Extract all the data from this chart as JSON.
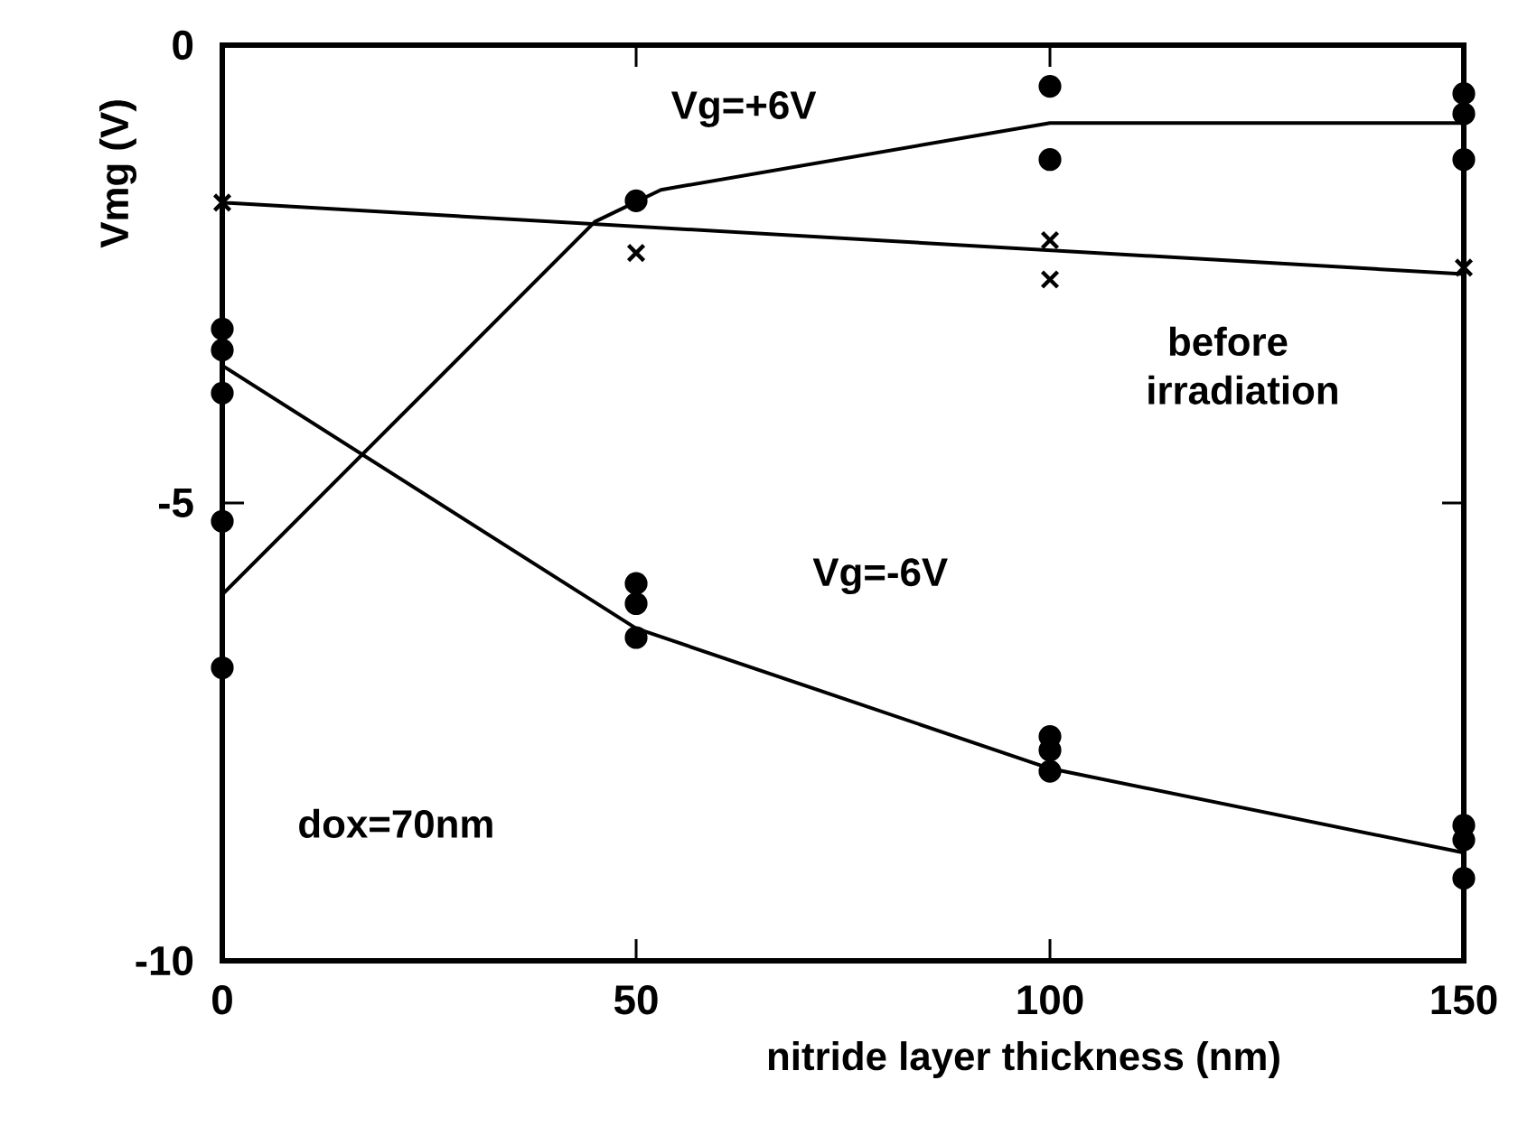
{
  "chart_data": {
    "type": "scatter",
    "xlabel": "nitride layer thickness (nm)",
    "ylabel": "Vmg (V)",
    "xlim": [
      0,
      150
    ],
    "ylim": [
      -10,
      0
    ],
    "xticks": [
      0,
      50,
      100,
      150
    ],
    "yticks": [
      0,
      -5,
      -10
    ],
    "grid": false,
    "series": [
      {
        "marker": "circle",
        "color": "#000000",
        "x": [
          0,
          0,
          50,
          100,
          100,
          150,
          150,
          150
        ],
        "values": [
          -5.2,
          -6.8,
          -1.7,
          -0.45,
          -1.25,
          -0.53,
          -0.75,
          -1.25
        ]
      },
      {
        "marker": "cross",
        "color": "#000000",
        "x": [
          0,
          50,
          100,
          100,
          150
        ],
        "values": [
          -1.72,
          -2.27,
          -2.13,
          -2.56,
          -2.43
        ]
      },
      {
        "marker": "circle",
        "color": "#000000",
        "x": [
          0,
          0,
          0,
          50,
          50,
          50,
          100,
          100,
          100,
          150,
          150,
          150
        ],
        "values": [
          -3.1,
          -3.33,
          -3.8,
          -5.88,
          -6.1,
          -6.47,
          -7.55,
          -7.7,
          -7.93,
          -8.52,
          -8.68,
          -9.1
        ]
      },
      {
        "type": "line",
        "marker": "none",
        "line_style": "solid",
        "color": "#000000",
        "x": [
          0,
          45,
          53,
          100,
          150
        ],
        "values": [
          -6.0,
          -1.93,
          -1.58,
          -0.85,
          -0.85
        ]
      },
      {
        "type": "line",
        "marker": "none",
        "line_style": "solid",
        "color": "#000000",
        "x": [
          0,
          150
        ],
        "values": [
          -1.72,
          -2.5
        ]
      },
      {
        "type": "line",
        "marker": "none",
        "line_style": "solid",
        "color": "#000000",
        "x": [
          0,
          50,
          100,
          150
        ],
        "values": [
          -3.5,
          -6.37,
          -7.9,
          -8.82
        ]
      }
    ],
    "annotations": [
      "Vg=+6V",
      "before irradiation",
      "Vg=-6V",
      "dox=70nm"
    ]
  }
}
